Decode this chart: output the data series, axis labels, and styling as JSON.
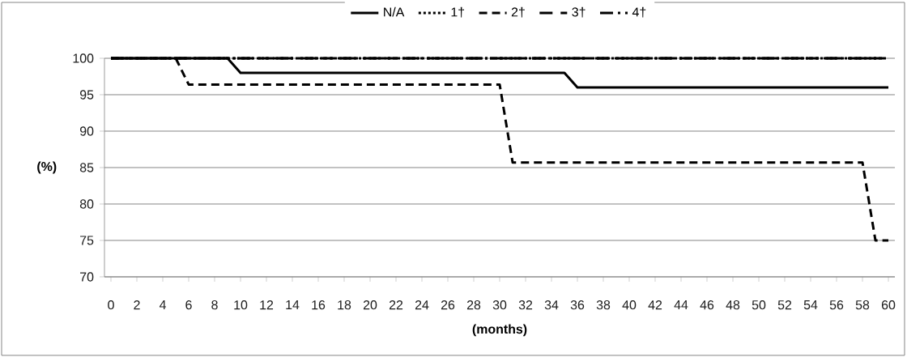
{
  "chart_data": {
    "type": "line",
    "xlabel": "(months)",
    "ylabel": "(%)",
    "xlim": [
      -0.5,
      60.5
    ],
    "ylim": [
      70,
      100
    ],
    "xticks": [
      0,
      2,
      4,
      6,
      8,
      10,
      12,
      14,
      16,
      18,
      20,
      22,
      24,
      26,
      28,
      30,
      32,
      34,
      36,
      38,
      40,
      42,
      44,
      46,
      48,
      50,
      52,
      54,
      56,
      58,
      60
    ],
    "yticks": [
      70,
      75,
      80,
      85,
      90,
      95,
      100
    ],
    "grid": "y",
    "legend": "top",
    "marker": "none",
    "series": [
      {
        "name": "N/A",
        "color": "#000000",
        "line_style": "solid",
        "x": [
          0,
          9,
          10,
          35,
          36,
          60
        ],
        "values": [
          100,
          100,
          98,
          98,
          96,
          96
        ]
      },
      {
        "name": "1†",
        "color": "#000000",
        "line_style": "dotted",
        "x": [
          0,
          60
        ],
        "values": [
          100,
          100
        ]
      },
      {
        "name": "2†",
        "color": "#000000",
        "line_style": "dashed",
        "x": [
          0,
          5,
          6,
          30,
          31,
          58,
          59,
          60
        ],
        "values": [
          100,
          100,
          96.4,
          96.4,
          85.7,
          85.7,
          75,
          75
        ]
      },
      {
        "name": "3†",
        "color": "#000000",
        "line_style": "long dashed",
        "x": [
          0,
          60
        ],
        "values": [
          100,
          100
        ]
      },
      {
        "name": "4†",
        "color": "#000000",
        "line_style": "dashdotdot",
        "x": [
          0,
          60
        ],
        "values": [
          100,
          100
        ]
      }
    ]
  }
}
